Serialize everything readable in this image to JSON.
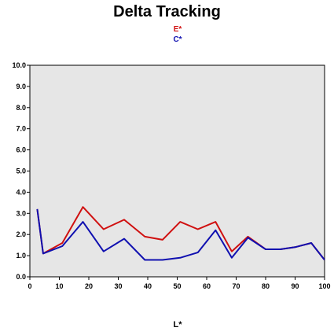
{
  "chart_data": {
    "type": "line",
    "title": "Delta Tracking",
    "xlabel": "L*",
    "ylabel": "",
    "xlim": [
      0,
      100
    ],
    "ylim": [
      0,
      10
    ],
    "xticks": [
      0,
      10,
      20,
      30,
      40,
      50,
      60,
      70,
      80,
      90,
      100
    ],
    "yticks": [
      0.0,
      1.0,
      2.0,
      3.0,
      4.0,
      5.0,
      6.0,
      7.0,
      8.0,
      9.0,
      10.0
    ],
    "x_tick_labels": [
      "0",
      "10",
      "20",
      "30",
      "40",
      "50",
      "60",
      "70",
      "80",
      "90",
      "100"
    ],
    "y_tick_labels": [
      "0.0",
      "1.0",
      "2.0",
      "3.0",
      "4.0",
      "5.0",
      "6.0",
      "7.0",
      "8.0",
      "9.0",
      "10.0"
    ],
    "grid": false,
    "background": "#e6e6e6",
    "series": [
      {
        "name": "E*",
        "color": "#d01010",
        "x": [
          2.5,
          4.5,
          11,
          18,
          25,
          32,
          39,
          45,
          51,
          57,
          63,
          68.5,
          74,
          80,
          85,
          90,
          95.5,
          100
        ],
        "y": [
          3.2,
          1.1,
          1.6,
          3.3,
          2.25,
          2.7,
          1.9,
          1.75,
          2.6,
          2.25,
          2.6,
          1.2,
          1.9,
          1.3,
          1.3,
          1.4,
          1.6,
          0.8
        ]
      },
      {
        "name": "C*",
        "color": "#1010b0",
        "x": [
          2.5,
          4.5,
          11,
          18,
          25,
          32,
          39,
          45,
          51,
          57,
          63,
          68.5,
          74,
          80,
          85,
          90,
          95.5,
          100
        ],
        "y": [
          3.2,
          1.1,
          1.45,
          2.6,
          1.2,
          1.8,
          0.8,
          0.8,
          0.9,
          1.15,
          2.2,
          0.9,
          1.85,
          1.3,
          1.3,
          1.4,
          1.6,
          0.8
        ]
      }
    ]
  }
}
